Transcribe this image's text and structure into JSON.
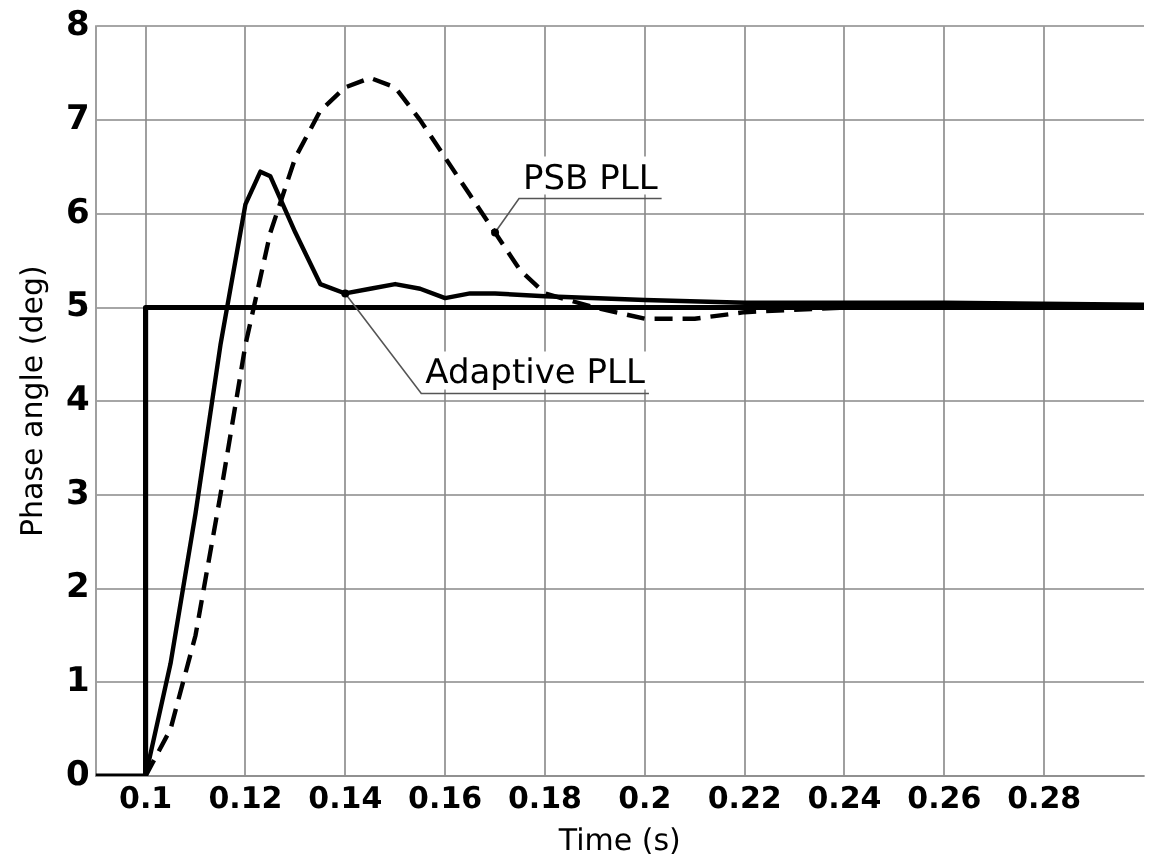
{
  "chart_data": {
    "type": "line",
    "xlabel": "Time (s)",
    "ylabel": "Phase angle (deg)",
    "xlim": [
      0.09,
      0.3
    ],
    "xticks": [
      0.1,
      0.12,
      0.14,
      0.16,
      0.18,
      0.2,
      0.22,
      0.24,
      0.26,
      0.28
    ],
    "ylim": [
      0,
      8
    ],
    "yticks": [
      0,
      1,
      2,
      3,
      4,
      5,
      6,
      7,
      8
    ],
    "grid": true,
    "legend": false,
    "marker": "none",
    "series": [
      {
        "color": "#000000",
        "line_style": "solid",
        "x": [
          0.09,
          0.1,
          0.1,
          0.3
        ],
        "values": [
          0,
          0,
          5,
          5
        ]
      },
      {
        "name": "Adaptive PLL",
        "color": "#000000",
        "line_style": "solid",
        "x": [
          0.1,
          0.105,
          0.11,
          0.115,
          0.12,
          0.123,
          0.125,
          0.13,
          0.135,
          0.14,
          0.145,
          0.15,
          0.155,
          0.16,
          0.165,
          0.17,
          0.18,
          0.2,
          0.22,
          0.26,
          0.3
        ],
        "values": [
          0,
          1.2,
          2.8,
          4.6,
          6.1,
          6.45,
          6.4,
          5.8,
          5.25,
          5.15,
          5.2,
          5.25,
          5.2,
          5.1,
          5.15,
          5.15,
          5.12,
          5.08,
          5.05,
          5.05,
          5.03
        ]
      },
      {
        "name": "PSB PLL",
        "color": "#000000",
        "line_style": "dashed",
        "x": [
          0.1,
          0.105,
          0.11,
          0.115,
          0.12,
          0.125,
          0.13,
          0.135,
          0.14,
          0.145,
          0.15,
          0.155,
          0.16,
          0.165,
          0.17,
          0.175,
          0.18,
          0.19,
          0.2,
          0.21,
          0.22,
          0.24,
          0.3
        ],
        "values": [
          0,
          0.5,
          1.5,
          3,
          4.6,
          5.8,
          6.6,
          7.1,
          7.35,
          7.45,
          7.35,
          7,
          6.6,
          6.2,
          5.8,
          5.4,
          5.15,
          5,
          4.88,
          4.88,
          4.95,
          5,
          5
        ]
      }
    ]
  }
}
